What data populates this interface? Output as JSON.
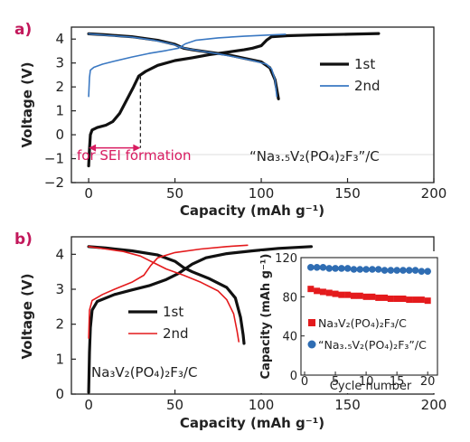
{
  "chart_data": [
    {
      "panel_label": "a)",
      "type": "line",
      "xlabel": "Capacity (mAh g⁻¹)",
      "ylabel": "Voltage (V)",
      "xlim": [
        -10,
        200
      ],
      "ylim": [
        -2,
        4.5
      ],
      "xticks": [
        "0",
        "50",
        "100",
        "150",
        "200"
      ],
      "yticks": [
        "−2",
        "−1",
        "0",
        "1",
        "2",
        "3",
        "4"
      ],
      "legend_position": "middle-right",
      "material_label": "“Na₃.₅V₂(PO₄)₂F₃”/C",
      "annotation": {
        "text": "for SEI formation",
        "color": "#d81b60",
        "x_range": [
          0,
          30
        ],
        "y": -0.55,
        "marker_x": 30,
        "marker_y_top": 2.45
      },
      "series": [
        {
          "name": "1st",
          "color": "#111111",
          "charge": [
            [
              0,
              -1.3
            ],
            [
              0.5,
              -0.6
            ],
            [
              1,
              0
            ],
            [
              2,
              0.2
            ],
            [
              5,
              0.3
            ],
            [
              10,
              0.4
            ],
            [
              14,
              0.55
            ],
            [
              18,
              0.9
            ],
            [
              22,
              1.45
            ],
            [
              26,
              2.0
            ],
            [
              29,
              2.45
            ],
            [
              33,
              2.65
            ],
            [
              40,
              2.9
            ],
            [
              50,
              3.1
            ],
            [
              60,
              3.22
            ],
            [
              70,
              3.35
            ],
            [
              80,
              3.45
            ],
            [
              90,
              3.55
            ],
            [
              95,
              3.62
            ],
            [
              100,
              3.72
            ],
            [
              103,
              3.95
            ],
            [
              106,
              4.1
            ],
            [
              115,
              4.14
            ],
            [
              130,
              4.17
            ],
            [
              150,
              4.2
            ],
            [
              168,
              4.23
            ]
          ],
          "discharge": [
            [
              0,
              4.22
            ],
            [
              10,
              4.18
            ],
            [
              25,
              4.1
            ],
            [
              40,
              3.95
            ],
            [
              50,
              3.78
            ],
            [
              55,
              3.62
            ],
            [
              60,
              3.55
            ],
            [
              70,
              3.45
            ],
            [
              80,
              3.35
            ],
            [
              90,
              3.2
            ],
            [
              100,
              3.05
            ],
            [
              105,
              2.8
            ],
            [
              108,
              2.3
            ],
            [
              109,
              1.9
            ],
            [
              110,
              1.5
            ]
          ]
        },
        {
          "name": "2nd",
          "color": "#3a78c2",
          "charge": [
            [
              0,
              1.6
            ],
            [
              0.5,
              2.4
            ],
            [
              1,
              2.7
            ],
            [
              3,
              2.82
            ],
            [
              8,
              2.95
            ],
            [
              15,
              3.08
            ],
            [
              25,
              3.25
            ],
            [
              35,
              3.4
            ],
            [
              45,
              3.52
            ],
            [
              52,
              3.62
            ],
            [
              56,
              3.8
            ],
            [
              62,
              3.95
            ],
            [
              75,
              4.05
            ],
            [
              90,
              4.12
            ],
            [
              105,
              4.17
            ],
            [
              114,
              4.2
            ]
          ],
          "discharge": [
            [
              0,
              4.22
            ],
            [
              10,
              4.16
            ],
            [
              25,
              4.08
            ],
            [
              38,
              3.95
            ],
            [
              48,
              3.8
            ],
            [
              54,
              3.65
            ],
            [
              58,
              3.58
            ],
            [
              65,
              3.5
            ],
            [
              75,
              3.38
            ],
            [
              85,
              3.25
            ],
            [
              95,
              3.1
            ],
            [
              103,
              2.95
            ],
            [
              106,
              2.75
            ],
            [
              108,
              2.3
            ],
            [
              109,
              1.6
            ]
          ]
        }
      ]
    },
    {
      "panel_label": "b)",
      "type": "line",
      "xlabel": "Capacity (mAh g⁻¹)",
      "ylabel": "Voltage (V)",
      "xlim": [
        -10,
        200
      ],
      "ylim": [
        0,
        4.5
      ],
      "xticks": [
        "0",
        "50",
        "100",
        "150",
        "200"
      ],
      "yticks": [
        "0",
        "1",
        "2",
        "3",
        "4"
      ],
      "legend_position": "middle-left",
      "material_label": "Na₃V₂(PO₄)₂F₃/C",
      "series": [
        {
          "name": "1st",
          "color": "#111111",
          "charge": [
            [
              0,
              0.05
            ],
            [
              0.5,
              1.2
            ],
            [
              1,
              1.9
            ],
            [
              2,
              2.4
            ],
            [
              5,
              2.65
            ],
            [
              15,
              2.85
            ],
            [
              25,
              2.98
            ],
            [
              35,
              3.1
            ],
            [
              45,
              3.28
            ],
            [
              52,
              3.45
            ],
            [
              55,
              3.55
            ],
            [
              60,
              3.72
            ],
            [
              68,
              3.9
            ],
            [
              80,
              4.02
            ],
            [
              95,
              4.1
            ],
            [
              110,
              4.17
            ],
            [
              129,
              4.22
            ]
          ],
          "discharge": [
            [
              0,
              4.22
            ],
            [
              10,
              4.18
            ],
            [
              25,
              4.1
            ],
            [
              40,
              3.98
            ],
            [
              50,
              3.8
            ],
            [
              55,
              3.62
            ],
            [
              60,
              3.5
            ],
            [
              70,
              3.3
            ],
            [
              80,
              3.05
            ],
            [
              85,
              2.75
            ],
            [
              88,
              2.2
            ],
            [
              89.5,
              1.7
            ],
            [
              90,
              1.45
            ]
          ]
        },
        {
          "name": "2nd",
          "color": "#e41a1c",
          "charge": [
            [
              0,
              1.6
            ],
            [
              0.5,
              2.4
            ],
            [
              2,
              2.68
            ],
            [
              8,
              2.85
            ],
            [
              15,
              3.0
            ],
            [
              25,
              3.2
            ],
            [
              32,
              3.4
            ],
            [
              36,
              3.68
            ],
            [
              40,
              3.9
            ],
            [
              50,
              4.05
            ],
            [
              65,
              4.15
            ],
            [
              80,
              4.22
            ],
            [
              92,
              4.26
            ]
          ],
          "discharge": [
            [
              0,
              4.22
            ],
            [
              10,
              4.15
            ],
            [
              20,
              4.08
            ],
            [
              30,
              3.95
            ],
            [
              38,
              3.75
            ],
            [
              45,
              3.58
            ],
            [
              55,
              3.4
            ],
            [
              65,
              3.2
            ],
            [
              75,
              2.95
            ],
            [
              80,
              2.7
            ],
            [
              84,
              2.3
            ],
            [
              86,
              1.8
            ],
            [
              87,
              1.5
            ]
          ]
        }
      ]
    },
    {
      "panel_label": "",
      "type": "scatter",
      "inset": true,
      "xlabel": "Cycle number",
      "ylabel": "Capacity (mAh g⁻¹)",
      "xlim": [
        0,
        21
      ],
      "ylim": [
        0,
        120
      ],
      "xticks": [
        "0",
        "5",
        "10",
        "15",
        "20"
      ],
      "yticks": [
        "0",
        "40",
        "80",
        "120"
      ],
      "legend_position": "bottom-right",
      "series": [
        {
          "name": "Na₃V₂(PO₄)₂F₃/C",
          "color": "#e41a1c",
          "marker": "square",
          "x": [
            1,
            2,
            3,
            4,
            5,
            6,
            7,
            8,
            9,
            10,
            11,
            12,
            13,
            14,
            15,
            16,
            17,
            18,
            19,
            20
          ],
          "y": [
            88,
            86,
            85,
            84,
            83,
            82,
            82,
            81,
            81,
            80,
            80,
            79,
            79,
            78,
            78,
            78,
            77,
            77,
            77,
            76
          ]
        },
        {
          "name": "“Na₃.₅V₂(PO₄)₂F₃”/C",
          "color": "#2f6db3",
          "marker": "circle",
          "x": [
            1,
            2,
            3,
            4,
            5,
            6,
            7,
            8,
            9,
            10,
            11,
            12,
            13,
            14,
            15,
            16,
            17,
            18,
            19,
            20
          ],
          "y": [
            110,
            110,
            110,
            109,
            109,
            109,
            109,
            108,
            108,
            108,
            108,
            108,
            107,
            107,
            107,
            107,
            107,
            107,
            106,
            106
          ]
        }
      ]
    }
  ]
}
